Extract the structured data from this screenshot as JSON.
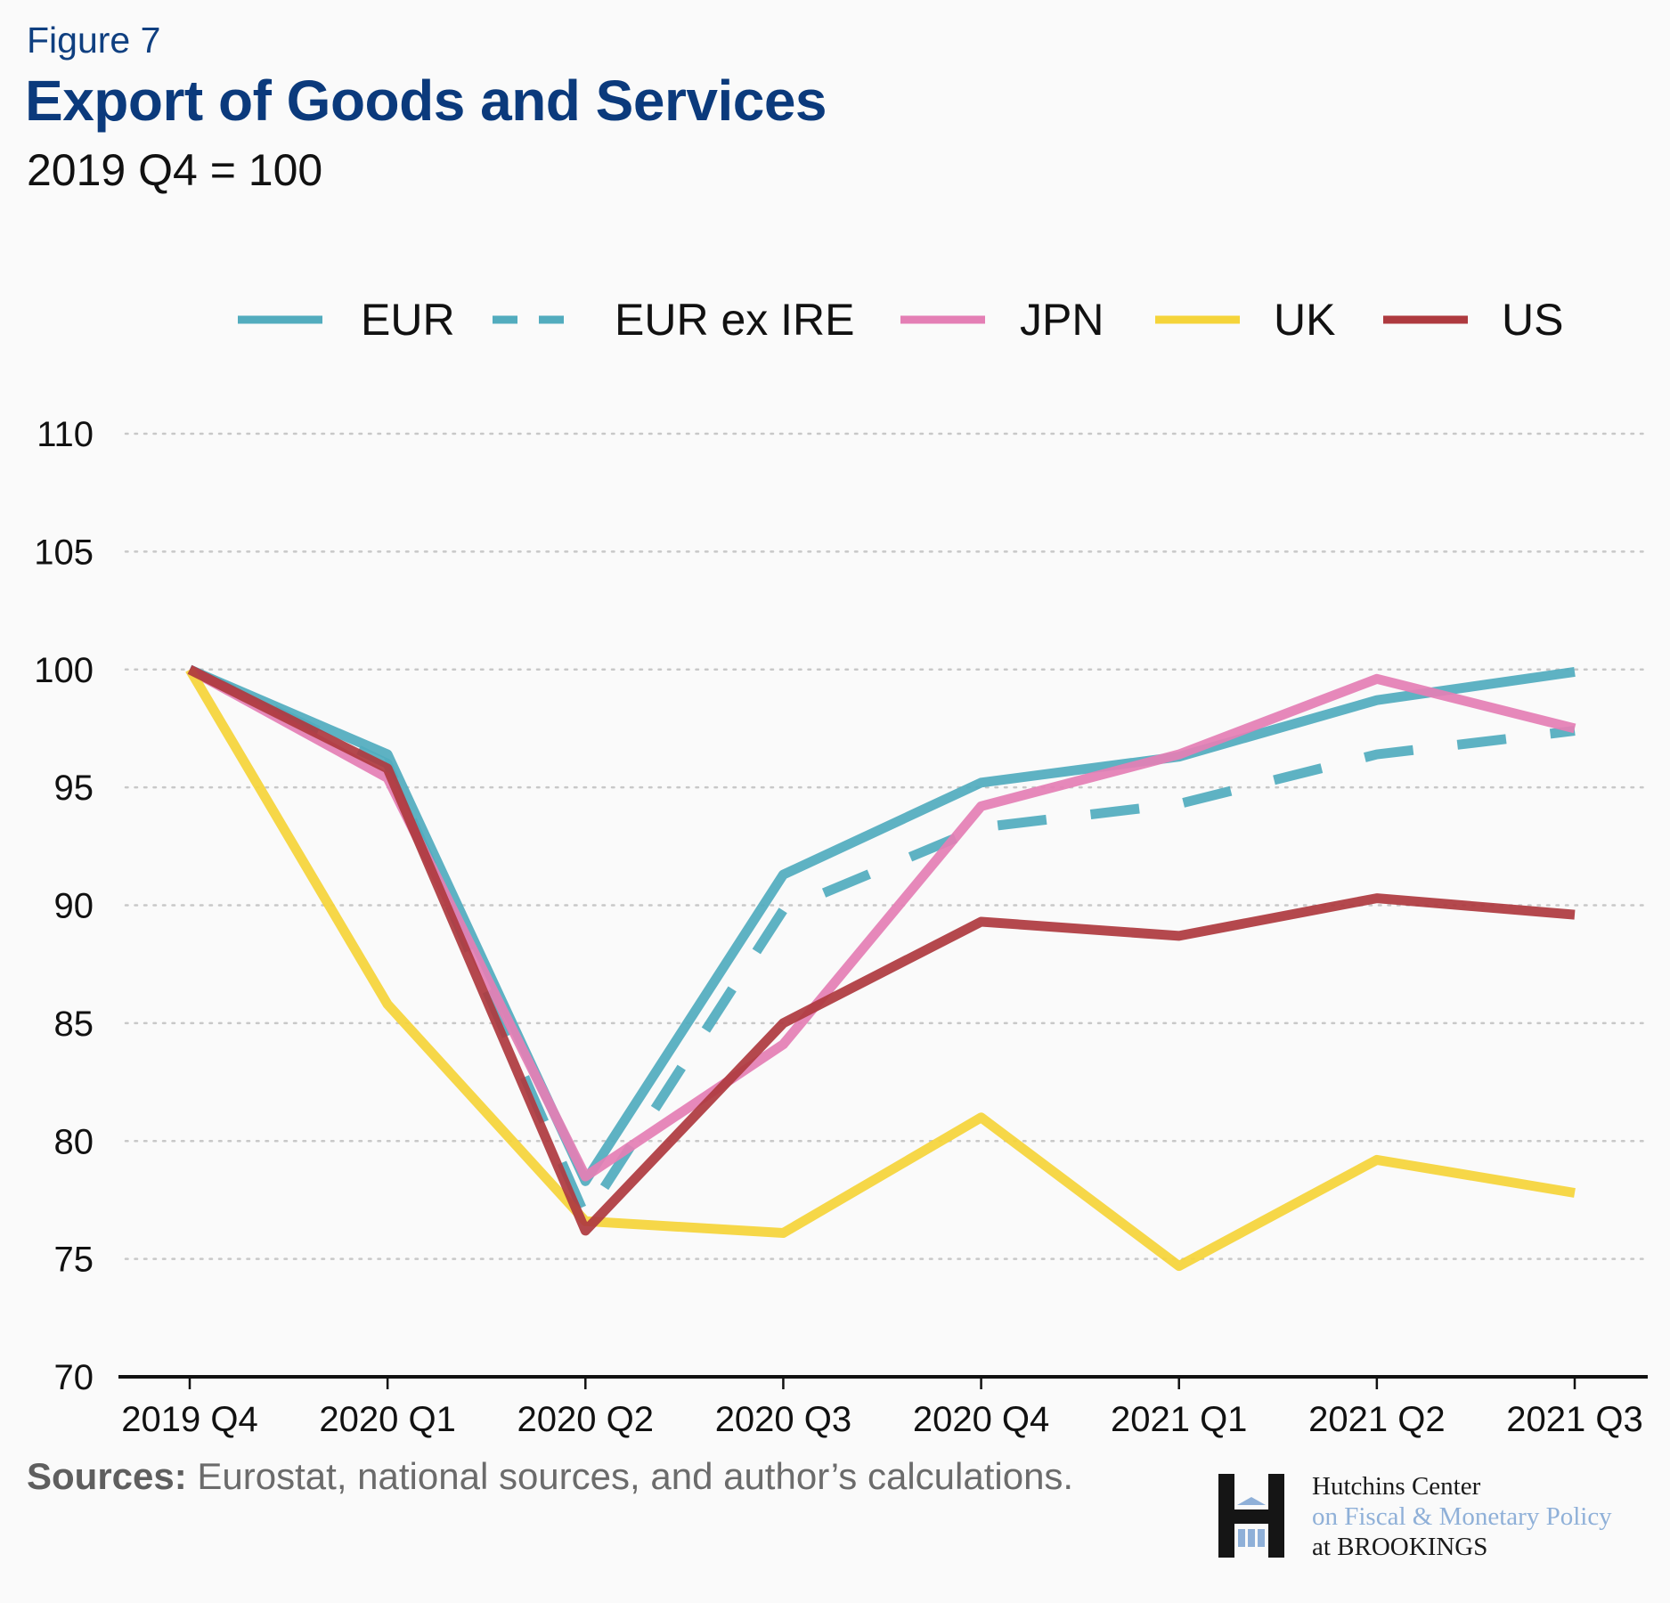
{
  "header": {
    "figure_label": "Figure 7",
    "title": "Export of Goods and Services",
    "subtitle": "2019 Q4 = 100"
  },
  "footer": {
    "sources_label": "Sources:",
    "sources_text": " Eurostat, national sources, and author’s calculations."
  },
  "logo": {
    "line1": "Hutchins Center",
    "line2": "on Fiscal & Monetary Policy",
    "line3": "at BROOKINGS",
    "icon": "hutchins-h-icon",
    "colors": {
      "dark": "#151515",
      "light": "#8fb0d8"
    }
  },
  "chart_data": {
    "type": "line",
    "title": "Export of Goods and Services",
    "subtitle": "2019 Q4 = 100",
    "xlabel": "",
    "ylabel": "",
    "categories": [
      "2019 Q4",
      "2020 Q1",
      "2020 Q2",
      "2020 Q3",
      "2020 Q4",
      "2021 Q1",
      "2021 Q2",
      "2021 Q3"
    ],
    "ylim": [
      70,
      110
    ],
    "yticks": [
      70,
      75,
      80,
      85,
      90,
      95,
      100,
      105,
      110
    ],
    "grid": "horizontal-dotted",
    "legend_position": "top",
    "series": [
      {
        "name": "EUR",
        "color": "#52acbe",
        "style": "solid",
        "values": [
          100,
          96.4,
          78.3,
          91.3,
          95.2,
          96.3,
          98.7,
          99.9
        ]
      },
      {
        "name": "EUR ex IRE",
        "color": "#52acbe",
        "style": "dashed",
        "values": [
          100,
          96.0,
          76.8,
          89.8,
          93.3,
          94.3,
          96.4,
          97.4
        ]
      },
      {
        "name": "JPN",
        "color": "#e47fb5",
        "style": "solid",
        "values": [
          100,
          95.4,
          78.5,
          84.1,
          94.2,
          96.4,
          99.6,
          97.5
        ]
      },
      {
        "name": "UK",
        "color": "#f5d43a",
        "style": "solid",
        "values": [
          100,
          85.8,
          76.6,
          76.1,
          81.0,
          74.7,
          79.2,
          77.8
        ]
      },
      {
        "name": "US",
        "color": "#ae3a3f",
        "style": "solid",
        "values": [
          100,
          95.8,
          76.2,
          85.0,
          89.3,
          88.7,
          90.3,
          89.6
        ]
      }
    ],
    "source": "Eurostat, national sources, and author’s calculations."
  }
}
